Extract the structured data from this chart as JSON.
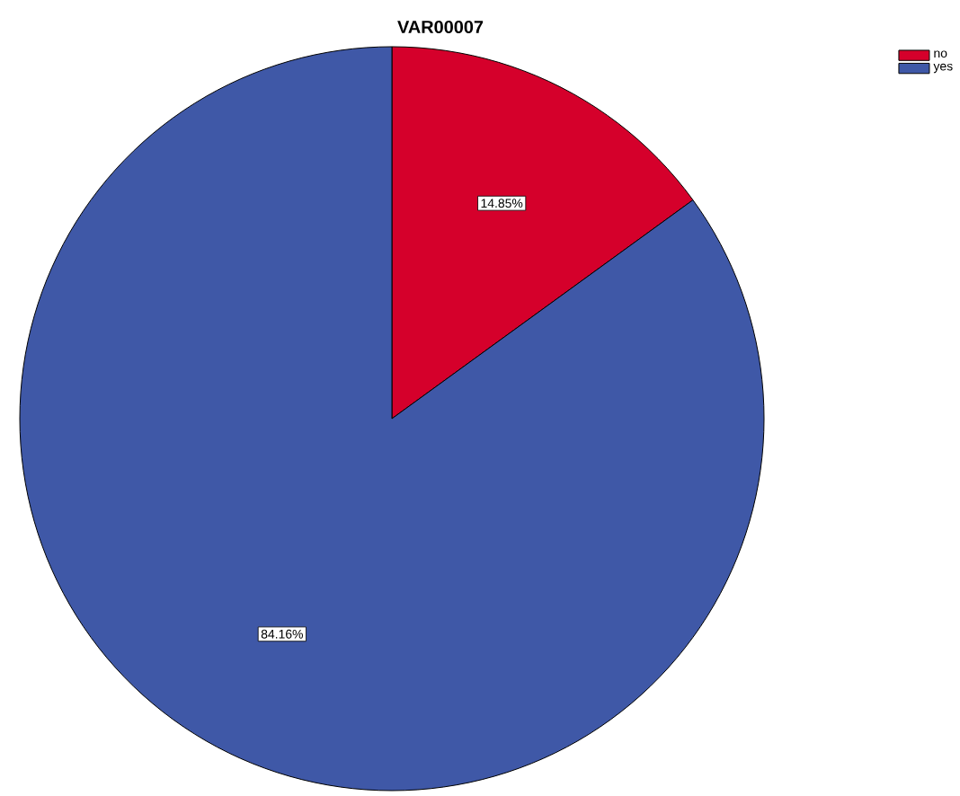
{
  "chart_data": {
    "type": "pie",
    "title": "VAR00007",
    "categories": [
      "no",
      "yes"
    ],
    "values": [
      14.85,
      84.16
    ],
    "colors": [
      "#d5002b",
      "#3f58a7"
    ],
    "value_labels": [
      "14.85%",
      "84.16%"
    ],
    "legend": "top right"
  }
}
